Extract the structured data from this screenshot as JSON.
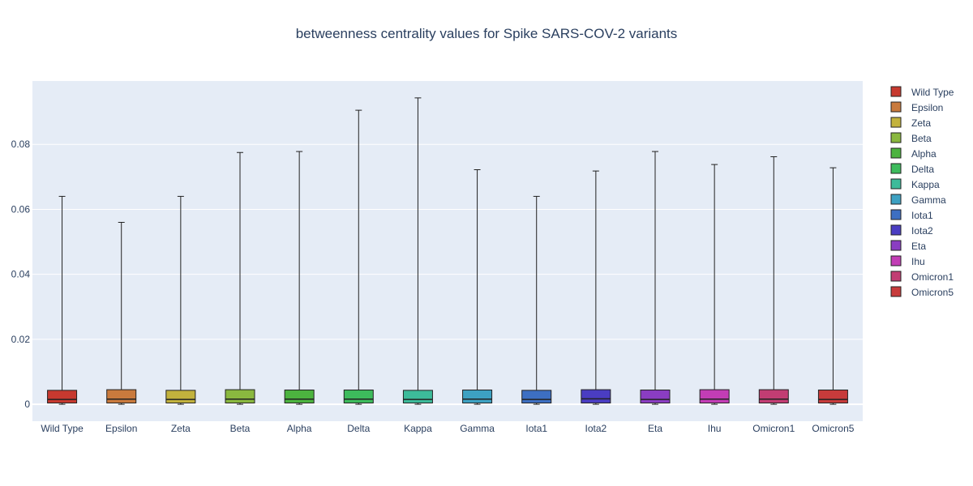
{
  "chart_data": {
    "type": "box",
    "title": "betweenness centrality values for Spike SARS-COV-2 variants",
    "xlabel": "",
    "ylabel": "",
    "ylim": [
      -0.0052,
      0.0995
    ],
    "yticks": [
      0,
      0.02,
      0.04,
      0.06,
      0.08
    ],
    "ytick_labels": [
      "0",
      "0.02",
      "0.04",
      "0.06",
      "0.08"
    ],
    "grid": true,
    "legend_position": "right",
    "series": [
      {
        "name": "Wild Type",
        "color": "#c7392f",
        "min": 0.0,
        "q1": 0.0004,
        "median": 0.0015,
        "q3": 0.0043,
        "max": 0.064
      },
      {
        "name": "Epsilon",
        "color": "#c97a3d",
        "min": 0.0,
        "q1": 0.0004,
        "median": 0.0016,
        "q3": 0.0045,
        "max": 0.056
      },
      {
        "name": "Zeta",
        "color": "#c2b23d",
        "min": 0.0,
        "q1": 0.0004,
        "median": 0.0015,
        "q3": 0.0043,
        "max": 0.064
      },
      {
        "name": "Beta",
        "color": "#8ab83f",
        "min": 0.0,
        "q1": 0.0004,
        "median": 0.0016,
        "q3": 0.0045,
        "max": 0.0775
      },
      {
        "name": "Alpha",
        "color": "#4cb33f",
        "min": 0.0,
        "q1": 0.0004,
        "median": 0.0016,
        "q3": 0.0044,
        "max": 0.0778
      },
      {
        "name": "Delta",
        "color": "#3dbb5c",
        "min": 0.0,
        "q1": 0.0004,
        "median": 0.0016,
        "q3": 0.0044,
        "max": 0.0905
      },
      {
        "name": "Kappa",
        "color": "#3dbb9a",
        "min": 0.0,
        "q1": 0.0004,
        "median": 0.0015,
        "q3": 0.0043,
        "max": 0.0943
      },
      {
        "name": "Gamma",
        "color": "#3da1c2",
        "min": 0.0,
        "q1": 0.0004,
        "median": 0.0016,
        "q3": 0.0044,
        "max": 0.0722
      },
      {
        "name": "Iota1",
        "color": "#3d6fc2",
        "min": 0.0,
        "q1": 0.0004,
        "median": 0.0015,
        "q3": 0.0043,
        "max": 0.064
      },
      {
        "name": "Iota2",
        "color": "#4a3dc2",
        "min": 0.0,
        "q1": 0.0004,
        "median": 0.0017,
        "q3": 0.0045,
        "max": 0.0718
      },
      {
        "name": "Eta",
        "color": "#8a3dc2",
        "min": 0.0,
        "q1": 0.0004,
        "median": 0.0015,
        "q3": 0.0044,
        "max": 0.0778
      },
      {
        "name": "Ihu",
        "color": "#c23db5",
        "min": 0.0,
        "q1": 0.0004,
        "median": 0.0016,
        "q3": 0.0045,
        "max": 0.0738
      },
      {
        "name": "Omicron1",
        "color": "#c23d73",
        "min": 0.0,
        "q1": 0.0004,
        "median": 0.0016,
        "q3": 0.0045,
        "max": 0.0762
      },
      {
        "name": "Omicron5",
        "color": "#c73b3b",
        "min": 0.0,
        "q1": 0.0004,
        "median": 0.0015,
        "q3": 0.0044,
        "max": 0.0728
      }
    ]
  }
}
